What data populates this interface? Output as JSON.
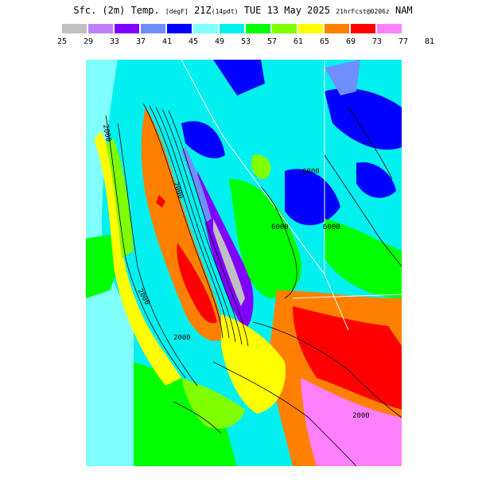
{
  "title": {
    "var": "Sfc. (2m) Temp.",
    "units": "[degF]",
    "valid": "21Z",
    "local": "(14pdt)",
    "date": "TUE 13 May 2025",
    "run": "21hrFcst@0206z",
    "model": "NAM"
  },
  "legend": {
    "bins": [
      {
        "label": "25",
        "color": "#c0c0c0"
      },
      {
        "label": "29",
        "color": "#c080ff"
      },
      {
        "label": "33",
        "color": "#8000ff"
      },
      {
        "label": "37",
        "color": "#6f8fff"
      },
      {
        "label": "41",
        "color": "#0000ff"
      },
      {
        "label": "45",
        "color": "#80ffff"
      },
      {
        "label": "49",
        "color": "#00f0f0"
      },
      {
        "label": "53",
        "color": "#00ff00"
      },
      {
        "label": "57",
        "color": "#80ff00"
      },
      {
        "label": "61",
        "color": "#ffff00"
      },
      {
        "label": "65",
        "color": "#ff8000"
      },
      {
        "label": "69",
        "color": "#ff0000"
      },
      {
        "label": "73",
        "color": "#ff80ff"
      },
      {
        "label": "77",
        "color": ""
      },
      {
        "label": "81",
        "color": ""
      }
    ]
  },
  "contour_labels": [
    "2000",
    "2000",
    "2000",
    "2000",
    "6000",
    "6000",
    "6000",
    "2000"
  ]
}
